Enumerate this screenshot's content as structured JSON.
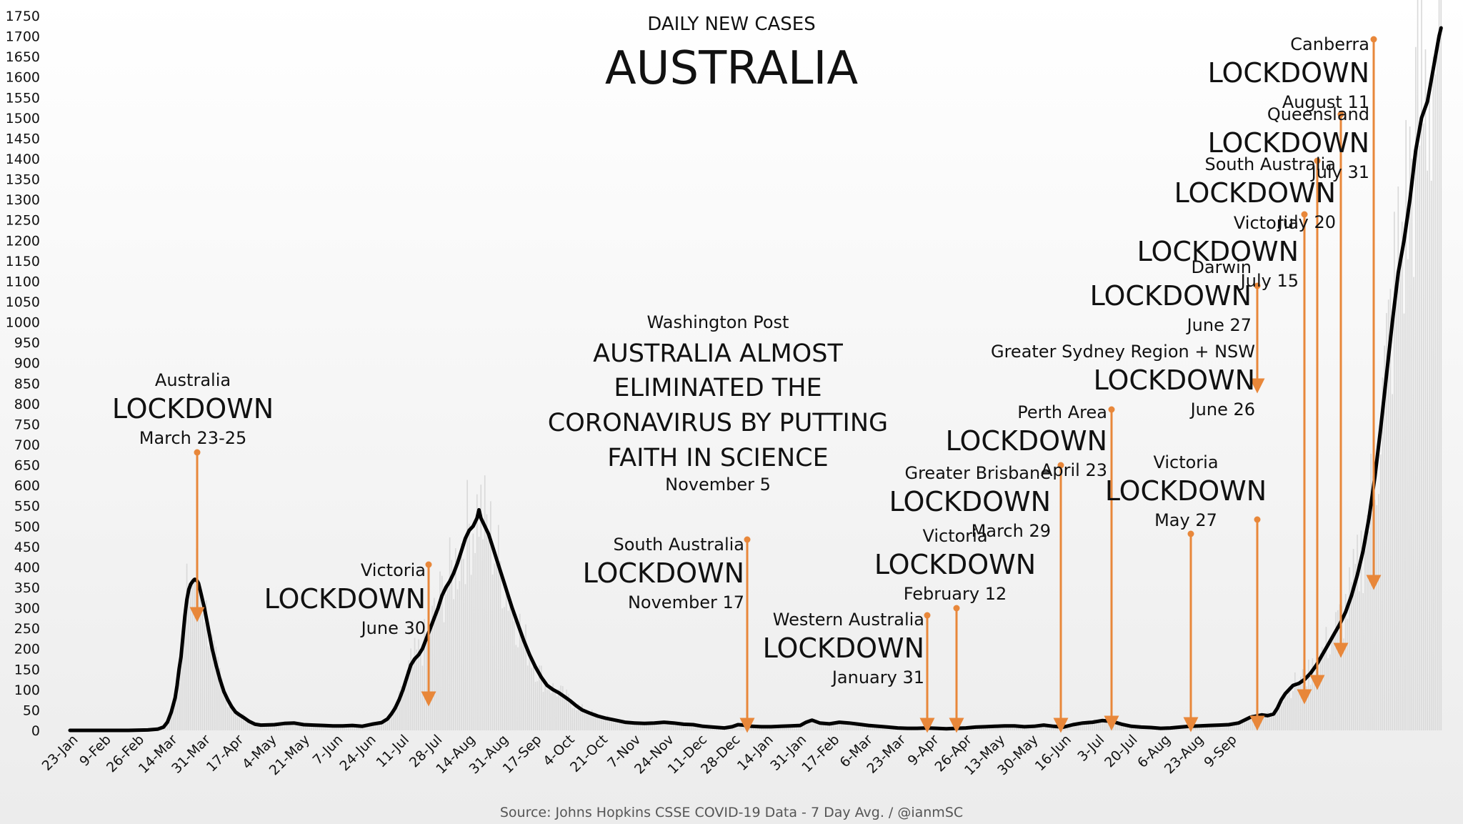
{
  "chart_data": {
    "type": "line",
    "subtitle": "DAILY NEW CASES",
    "title": "AUSTRALIA",
    "source": "Source: Johns Hopkins CSSE COVID-19 Data - 7 Day Avg. / @ianmSC",
    "ylim": [
      0,
      1750
    ],
    "y_ticks": [
      0,
      50,
      100,
      150,
      200,
      250,
      300,
      350,
      400,
      450,
      500,
      550,
      600,
      650,
      700,
      750,
      800,
      850,
      900,
      950,
      1000,
      1050,
      1100,
      1150,
      1200,
      1250,
      1300,
      1350,
      1400,
      1450,
      1500,
      1550,
      1600,
      1650,
      1700,
      1750
    ],
    "x_ticks": [
      "23-Jan",
      "9-Feb",
      "26-Feb",
      "14-Mar",
      "31-Mar",
      "17-Apr",
      "4-May",
      "21-May",
      "7-Jun",
      "24-Jun",
      "11-Jul",
      "28-Jul",
      "14-Aug",
      "31-Aug",
      "17-Sep",
      "4-Oct",
      "21-Oct",
      "7-Nov",
      "24-Nov",
      "11-Dec",
      "28-Dec",
      "14-Jan",
      "31-Jan",
      "17-Feb",
      "6-Mar",
      "23-Mar",
      "9-Apr",
      "26-Apr",
      "13-May",
      "30-May",
      "16-Jun",
      "3-Jul",
      "20-Jul",
      "6-Aug",
      "23-Aug",
      "9-Sep"
    ],
    "x_start": "2020-01-23",
    "series": [
      {
        "values": [
          [
            0,
            0
          ],
          [
            30,
            0
          ],
          [
            40,
            1
          ],
          [
            45,
            3
          ],
          [
            48,
            8
          ],
          [
            50,
            20
          ],
          [
            52,
            45
          ],
          [
            54,
            80
          ],
          [
            55,
            110
          ],
          [
            56,
            150
          ],
          [
            57,
            180
          ],
          [
            58,
            230
          ],
          [
            59,
            280
          ],
          [
            60,
            320
          ],
          [
            61,
            345
          ],
          [
            62,
            358
          ],
          [
            63,
            365
          ],
          [
            64,
            370
          ],
          [
            65,
            368
          ],
          [
            66,
            360
          ],
          [
            67,
            340
          ],
          [
            69,
            300
          ],
          [
            71,
            250
          ],
          [
            73,
            200
          ],
          [
            75,
            160
          ],
          [
            77,
            125
          ],
          [
            79,
            95
          ],
          [
            81,
            75
          ],
          [
            83,
            58
          ],
          [
            85,
            45
          ],
          [
            87,
            38
          ],
          [
            89,
            32
          ],
          [
            92,
            22
          ],
          [
            95,
            15
          ],
          [
            98,
            13
          ],
          [
            105,
            14
          ],
          [
            110,
            17
          ],
          [
            115,
            18
          ],
          [
            120,
            14
          ],
          [
            125,
            13
          ],
          [
            130,
            12
          ],
          [
            135,
            11
          ],
          [
            140,
            11
          ],
          [
            145,
            12
          ],
          [
            150,
            10
          ],
          [
            155,
            15
          ],
          [
            160,
            19
          ],
          [
            163,
            28
          ],
          [
            165,
            40
          ],
          [
            167,
            55
          ],
          [
            169,
            75
          ],
          [
            171,
            100
          ],
          [
            173,
            130
          ],
          [
            175,
            160
          ],
          [
            177,
            175
          ],
          [
            179,
            185
          ],
          [
            181,
            200
          ],
          [
            183,
            225
          ],
          [
            185,
            250
          ],
          [
            187,
            275
          ],
          [
            189,
            300
          ],
          [
            191,
            330
          ],
          [
            193,
            350
          ],
          [
            195,
            365
          ],
          [
            197,
            385
          ],
          [
            199,
            410
          ],
          [
            201,
            440
          ],
          [
            203,
            470
          ],
          [
            205,
            490
          ],
          [
            207,
            500
          ],
          [
            209,
            520
          ],
          [
            210,
            540
          ],
          [
            211,
            520
          ],
          [
            213,
            500
          ],
          [
            215,
            480
          ],
          [
            217,
            450
          ],
          [
            219,
            420
          ],
          [
            221,
            390
          ],
          [
            223,
            360
          ],
          [
            225,
            330
          ],
          [
            227,
            300
          ],
          [
            230,
            260
          ],
          [
            233,
            220
          ],
          [
            236,
            185
          ],
          [
            239,
            155
          ],
          [
            242,
            130
          ],
          [
            245,
            110
          ],
          [
            248,
            100
          ],
          [
            251,
            92
          ],
          [
            254,
            82
          ],
          [
            257,
            72
          ],
          [
            260,
            60
          ],
          [
            263,
            50
          ],
          [
            267,
            42
          ],
          [
            271,
            35
          ],
          [
            275,
            30
          ],
          [
            280,
            25
          ],
          [
            285,
            20
          ],
          [
            290,
            18
          ],
          [
            295,
            17
          ],
          [
            300,
            18
          ],
          [
            305,
            20
          ],
          [
            310,
            18
          ],
          [
            315,
            15
          ],
          [
            320,
            14
          ],
          [
            325,
            10
          ],
          [
            330,
            8
          ],
          [
            333,
            7
          ],
          [
            336,
            6
          ],
          [
            340,
            9
          ],
          [
            343,
            14
          ],
          [
            346,
            13
          ],
          [
            350,
            10
          ],
          [
            355,
            9
          ],
          [
            360,
            9
          ],
          [
            365,
            10
          ],
          [
            370,
            11
          ],
          [
            375,
            12
          ],
          [
            378,
            20
          ],
          [
            381,
            25
          ],
          [
            385,
            18
          ],
          [
            390,
            16
          ],
          [
            395,
            20
          ],
          [
            400,
            18
          ],
          [
            405,
            15
          ],
          [
            410,
            12
          ],
          [
            415,
            10
          ],
          [
            420,
            8
          ],
          [
            425,
            6
          ],
          [
            430,
            5
          ],
          [
            435,
            5
          ],
          [
            440,
            6
          ],
          [
            445,
            5
          ],
          [
            450,
            4
          ],
          [
            455,
            5
          ],
          [
            460,
            6
          ],
          [
            465,
            8
          ],
          [
            470,
            9
          ],
          [
            475,
            10
          ],
          [
            480,
            11
          ],
          [
            485,
            11
          ],
          [
            490,
            9
          ],
          [
            495,
            10
          ],
          [
            500,
            13
          ],
          [
            505,
            10
          ],
          [
            510,
            8
          ],
          [
            515,
            14
          ],
          [
            520,
            18
          ],
          [
            525,
            20
          ],
          [
            530,
            24
          ],
          [
            535,
            22
          ],
          [
            540,
            15
          ],
          [
            545,
            10
          ],
          [
            550,
            8
          ],
          [
            555,
            7
          ],
          [
            560,
            5
          ],
          [
            565,
            6
          ],
          [
            570,
            8
          ],
          [
            575,
            10
          ],
          [
            580,
            11
          ],
          [
            585,
            12
          ],
          [
            590,
            13
          ],
          [
            595,
            14
          ],
          [
            600,
            18
          ],
          [
            603,
            25
          ],
          [
            606,
            32
          ],
          [
            609,
            35
          ],
          [
            612,
            38
          ],
          [
            615,
            36
          ],
          [
            618,
            40
          ],
          [
            620,
            55
          ],
          [
            622,
            75
          ],
          [
            624,
            90
          ],
          [
            626,
            100
          ],
          [
            628,
            110
          ],
          [
            631,
            115
          ],
          [
            634,
            125
          ],
          [
            637,
            140
          ],
          [
            640,
            160
          ],
          [
            643,
            185
          ],
          [
            646,
            210
          ],
          [
            649,
            235
          ],
          [
            652,
            260
          ],
          [
            655,
            290
          ],
          [
            658,
            330
          ],
          [
            661,
            380
          ],
          [
            664,
            440
          ],
          [
            667,
            520
          ],
          [
            670,
            620
          ],
          [
            673,
            740
          ],
          [
            676,
            870
          ],
          [
            679,
            1000
          ],
          [
            682,
            1120
          ],
          [
            685,
            1200
          ],
          [
            688,
            1300
          ],
          [
            691,
            1420
          ],
          [
            694,
            1500
          ],
          [
            697,
            1540
          ],
          [
            700,
            1620
          ],
          [
            703,
            1700
          ],
          [
            704,
            1720
          ]
        ]
      }
    ],
    "annotations": [
      {
        "place": "Australia",
        "word": "LOCKDOWN",
        "date": "March 23-25"
      },
      {
        "place": "Victoria",
        "word": "LOCKDOWN",
        "date": "June 30"
      },
      {
        "place": "South Australia",
        "word": "LOCKDOWN",
        "date": "November 17"
      },
      {
        "place": "Western Australia",
        "word": "LOCKDOWN",
        "date": "January 31"
      },
      {
        "place": "Victoria",
        "word": "LOCKDOWN",
        "date": "February 12"
      },
      {
        "place": "Greater Brisbane",
        "word": "LOCKDOWN",
        "date": "March 29"
      },
      {
        "place": "Perth Area",
        "word": "LOCKDOWN",
        "date": "April 23"
      },
      {
        "place": "Victoria",
        "word": "LOCKDOWN",
        "date": "May 27"
      },
      {
        "place": "Greater Sydney Region + NSW",
        "word": "LOCKDOWN",
        "date": "June 26"
      },
      {
        "place": "Darwin",
        "word": "LOCKDOWN",
        "date": "June 27"
      },
      {
        "place": "Victoria",
        "word": "LOCKDOWN",
        "date": "July 15"
      },
      {
        "place": "South Australia",
        "word": "LOCKDOWN",
        "date": "July 20"
      },
      {
        "place": "Queensland",
        "word": "LOCKDOWN",
        "date": "July 31"
      },
      {
        "place": "Canberra",
        "word": "LOCKDOWN",
        "date": "August 11"
      }
    ],
    "headline": {
      "outlet": "Washington Post",
      "lines": [
        "AUSTRALIA ALMOST",
        "ELIMINATED THE",
        "CORONAVIRUS BY PUTTING",
        "FAITH IN SCIENCE"
      ],
      "date": "November 5"
    },
    "colors": {
      "line": "#000000",
      "arrow": "#e8873a",
      "bars": "#d9d9d9",
      "background_top": "#ffffff",
      "background_bottom": "#ececec"
    }
  }
}
